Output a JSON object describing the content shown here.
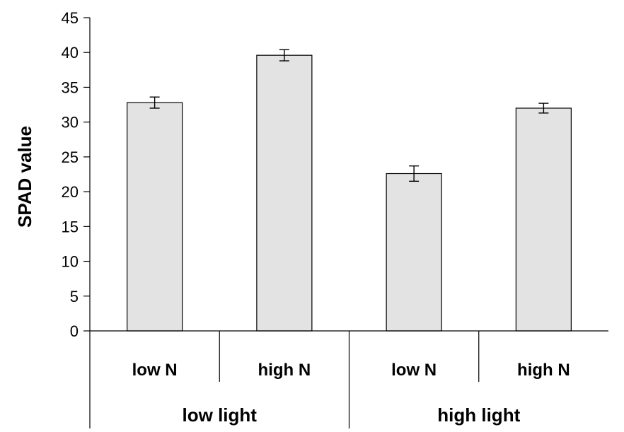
{
  "chart_data": {
    "type": "bar",
    "title": "",
    "ylabel": "SPAD value",
    "xlabel": "",
    "ylim": [
      0,
      45
    ],
    "yticks": [
      0,
      5,
      10,
      15,
      20,
      25,
      30,
      35,
      40,
      45
    ],
    "grid": false,
    "legend": "none",
    "bar_color": "#e3e3e3",
    "categories": [
      "low N",
      "high N",
      "low N",
      "high N"
    ],
    "groups": [
      {
        "label": "low light",
        "span": [
          0,
          1
        ]
      },
      {
        "label": "high light",
        "span": [
          2,
          3
        ]
      }
    ],
    "values": [
      32.8,
      39.6,
      22.6,
      32.0
    ],
    "errors": [
      0.8,
      0.8,
      1.1,
      0.7
    ]
  }
}
